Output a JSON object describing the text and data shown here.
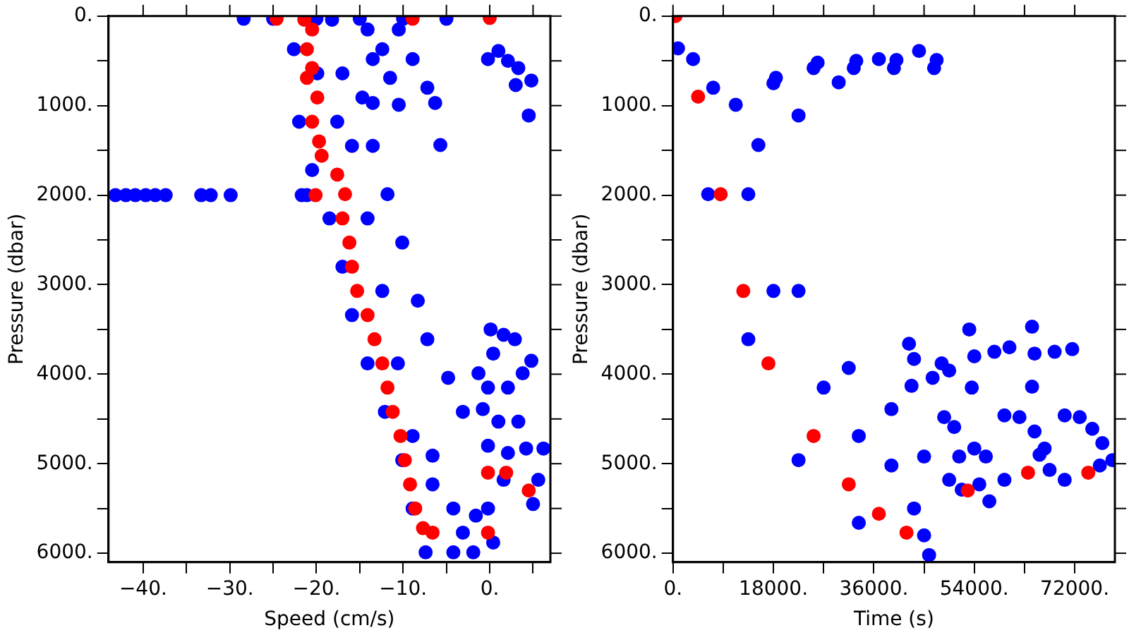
{
  "chart_data": [
    {
      "type": "scatter",
      "xlabel": "Speed (cm/s)",
      "ylabel": "Pressure (dbar)",
      "xlim": [
        -44,
        7
      ],
      "ylim": [
        6100,
        0
      ],
      "marker": "circle",
      "legend": false,
      "grid": false,
      "xticks": [
        {
          "value": -40,
          "label": "−40."
        },
        {
          "value": -35,
          "label": null
        },
        {
          "value": -30,
          "label": "−30."
        },
        {
          "value": -25,
          "label": null
        },
        {
          "value": -20,
          "label": "−20."
        },
        {
          "value": -15,
          "label": null
        },
        {
          "value": -10,
          "label": "−10."
        },
        {
          "value": -5,
          "label": null
        },
        {
          "value": 0,
          "label": "0."
        },
        {
          "value": 5,
          "label": null
        }
      ],
      "yticks": [
        {
          "value": 0,
          "label": "0."
        },
        {
          "value": 500,
          "label": null
        },
        {
          "value": 1000,
          "label": "1000."
        },
        {
          "value": 1500,
          "label": null
        },
        {
          "value": 2000,
          "label": "2000."
        },
        {
          "value": 2500,
          "label": null
        },
        {
          "value": 3000,
          "label": "3000."
        },
        {
          "value": 3500,
          "label": null
        },
        {
          "value": 4000,
          "label": "4000."
        },
        {
          "value": 4500,
          "label": null
        },
        {
          "value": 5000,
          "label": "5000."
        },
        {
          "value": 5500,
          "label": null
        },
        {
          "value": 6000,
          "label": "6000."
        }
      ],
      "series": [
        {
          "color": "#0000ff",
          "x": [
            -28.4,
            -25,
            -20,
            -15,
            -10,
            -5,
            -22.6,
            -22,
            -20.5,
            -18.5,
            -17,
            -15.9,
            -14.1,
            -12.1,
            -10.1,
            -8.9,
            -7.4,
            -18.2,
            -14.7,
            -13.5,
            -11.8,
            -10.1,
            -8.3,
            -7.2,
            -4.8,
            -3.1,
            -6.6,
            -4.2,
            -1.9,
            -17,
            -15.9,
            -14.1,
            -12.4,
            -10.6,
            -8.9,
            -6.6,
            -4.2,
            -19.9,
            -17.6,
            -14.1,
            -13.5,
            -12.4,
            -11.5,
            -10.5,
            -8.9,
            -7.2,
            -6.3,
            -13.5,
            -10.5,
            -5.7,
            -0.2,
            1,
            2.1,
            3.3,
            3,
            4.8,
            4.5,
            0.1,
            1.6,
            0.4,
            2.9,
            4.8,
            3.8,
            -1.3,
            -0.2,
            2.1,
            -0.8,
            1,
            3.3,
            -0.2,
            2.1,
            4.2,
            6.2,
            1.6,
            5.6,
            5,
            -1.6,
            -0.2,
            0.4,
            -3.1,
            -43.2,
            -42,
            -40.9,
            -39.7,
            -38.6,
            -37.4,
            -33.3,
            -32.2,
            -29.9,
            -21.7,
            -21.1
          ],
          "values": [
            30,
            30,
            30,
            30,
            30,
            30,
            370,
            1180,
            1720,
            2260,
            2800,
            3340,
            3880,
            4420,
            4960,
            5500,
            5990,
            40,
            910,
            1450,
            1990,
            2530,
            3180,
            3610,
            4040,
            4420,
            4910,
            5500,
            5990,
            640,
            1450,
            2260,
            3070,
            3880,
            4690,
            5230,
            5990,
            640,
            1180,
            150,
            480,
            370,
            690,
            150,
            480,
            800,
            970,
            970,
            990,
            1440,
            480,
            390,
            500,
            580,
            770,
            720,
            1110,
            3500,
            3560,
            3770,
            3610,
            3850,
            3990,
            3990,
            4150,
            4150,
            4390,
            4530,
            4530,
            4800,
            4880,
            4830,
            4830,
            5180,
            5180,
            5450,
            5580,
            5500,
            5880,
            5770,
            2000,
            2000,
            2000,
            2000,
            2000,
            2000,
            2000,
            2000,
            2000,
            2000,
            2000
          ]
        },
        {
          "color": "#ff0000",
          "x": [
            -24.6,
            -21.4,
            -20.5,
            -21.1,
            -20.5,
            -21.1,
            -19.9,
            -20.5,
            -19.7,
            -19.4,
            -17.6,
            -16.7,
            -20.1,
            -17,
            -16.2,
            -15.9,
            -15.3,
            -14.1,
            -13.3,
            -12.4,
            -11.8,
            -11.2,
            -10.3,
            -9.8,
            -9.2,
            -8.6,
            -7.7,
            -6.6,
            0,
            -8.9,
            -0.2,
            1.9,
            4.5,
            -0.2
          ],
          "values": [
            30,
            40,
            150,
            370,
            580,
            690,
            910,
            1180,
            1400,
            1560,
            1770,
            1990,
            2000,
            2260,
            2530,
            2800,
            3070,
            3340,
            3610,
            3880,
            4150,
            4420,
            4690,
            4960,
            5230,
            5500,
            5720,
            5770,
            20,
            30,
            5100,
            5100,
            5300,
            5770
          ]
        }
      ]
    },
    {
      "type": "scatter",
      "xlabel": "Time (s)",
      "ylabel": "Pressure (dbar)",
      "xlim": [
        0,
        79200
      ],
      "ylim": [
        6100,
        0
      ],
      "marker": "circle",
      "legend": false,
      "grid": false,
      "xticks": [
        {
          "value": 0,
          "label": "0."
        },
        {
          "value": 9000,
          "label": null
        },
        {
          "value": 18000,
          "label": "18000."
        },
        {
          "value": 27000,
          "label": null
        },
        {
          "value": 36000,
          "label": "36000."
        },
        {
          "value": 45000,
          "label": null
        },
        {
          "value": 54000,
          "label": "54000."
        },
        {
          "value": 63000,
          "label": null
        },
        {
          "value": 72000,
          "label": "72000."
        }
      ],
      "yticks": [
        {
          "value": 0,
          "label": "0."
        },
        {
          "value": 500,
          "label": null
        },
        {
          "value": 1000,
          "label": "1000."
        },
        {
          "value": 1500,
          "label": null
        },
        {
          "value": 2000,
          "label": "2000."
        },
        {
          "value": 2500,
          "label": null
        },
        {
          "value": 3000,
          "label": "3000."
        },
        {
          "value": 3500,
          "label": null
        },
        {
          "value": 4000,
          "label": "4000."
        },
        {
          "value": 4500,
          "label": null
        },
        {
          "value": 5000,
          "label": "5000."
        },
        {
          "value": 5500,
          "label": null
        },
        {
          "value": 6000,
          "label": "6000."
        }
      ],
      "series": [
        {
          "color": "#0000ff",
          "x": [
            900,
            6300,
            13500,
            22500,
            33300,
            45900,
            11250,
            7200,
            3600,
            39150,
            31500,
            22500,
            13500,
            39150,
            43200,
            45000,
            18000,
            27000,
            33300,
            15300,
            18000,
            18450,
            22500,
            25200,
            25920,
            29700,
            32400,
            32850,
            36900,
            39600,
            40050,
            44100,
            46800,
            47250,
            42300,
            43200,
            48150,
            49500,
            46530,
            42750,
            53100,
            54000,
            53550,
            57600,
            60300,
            64350,
            64800,
            64350,
            68400,
            71550,
            48600,
            50400,
            59400,
            62100,
            64800,
            66600,
            70200,
            72900,
            75150,
            76950,
            45000,
            51300,
            54000,
            56070,
            49500,
            51750,
            54900,
            56700,
            59400,
            67500,
            70200,
            76500,
            78750,
            65700
          ],
          "values": [
            360,
            1990,
            3610,
            4960,
            5660,
            6020,
            990,
            800,
            480,
            4390,
            3930,
            3070,
            1990,
            5020,
            5500,
            5800,
            3070,
            4150,
            4690,
            1440,
            750,
            690,
            1110,
            580,
            520,
            740,
            580,
            500,
            480,
            580,
            490,
            390,
            580,
            490,
            3660,
            3830,
            3880,
            3960,
            4040,
            4130,
            3500,
            3800,
            4150,
            3750,
            3700,
            3470,
            3770,
            4140,
            3750,
            3720,
            4480,
            4590,
            4460,
            4480,
            4640,
            4830,
            4460,
            4480,
            4610,
            4770,
            4920,
            4920,
            4830,
            4920,
            5180,
            5290,
            5230,
            5420,
            5180,
            5070,
            5180,
            5020,
            4960,
            4900
          ]
        },
        {
          "color": "#ff0000",
          "x": [
            450,
            4500,
            8550,
            12600,
            17100,
            25200,
            31500,
            36900,
            41850,
            52830,
            63630,
            74430
          ],
          "values": [
            0,
            900,
            1990,
            3070,
            3880,
            4690,
            5230,
            5560,
            5770,
            5300,
            5100,
            5100
          ]
        }
      ]
    }
  ]
}
